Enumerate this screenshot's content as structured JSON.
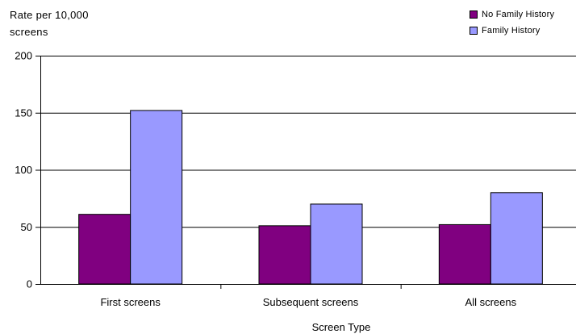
{
  "chart_data": {
    "type": "bar",
    "title": "",
    "ylabel": "Rate per 10,000 screens",
    "ylabel_lines": [
      "Rate per 10,000",
      "screens"
    ],
    "xlabel": "Screen Type",
    "categories": [
      "First screens",
      "Subsequent screens",
      "All screens"
    ],
    "series": [
      {
        "name": "No Family History",
        "color": "#800080",
        "values": [
          61,
          51,
          52
        ]
      },
      {
        "name": "Family History",
        "color": "#9999ff",
        "values": [
          152,
          70,
          80
        ]
      }
    ],
    "ylim": [
      0,
      200
    ],
    "yticks": [
      0,
      50,
      100,
      150,
      200
    ],
    "grid": true,
    "legend_position": "top-right"
  }
}
